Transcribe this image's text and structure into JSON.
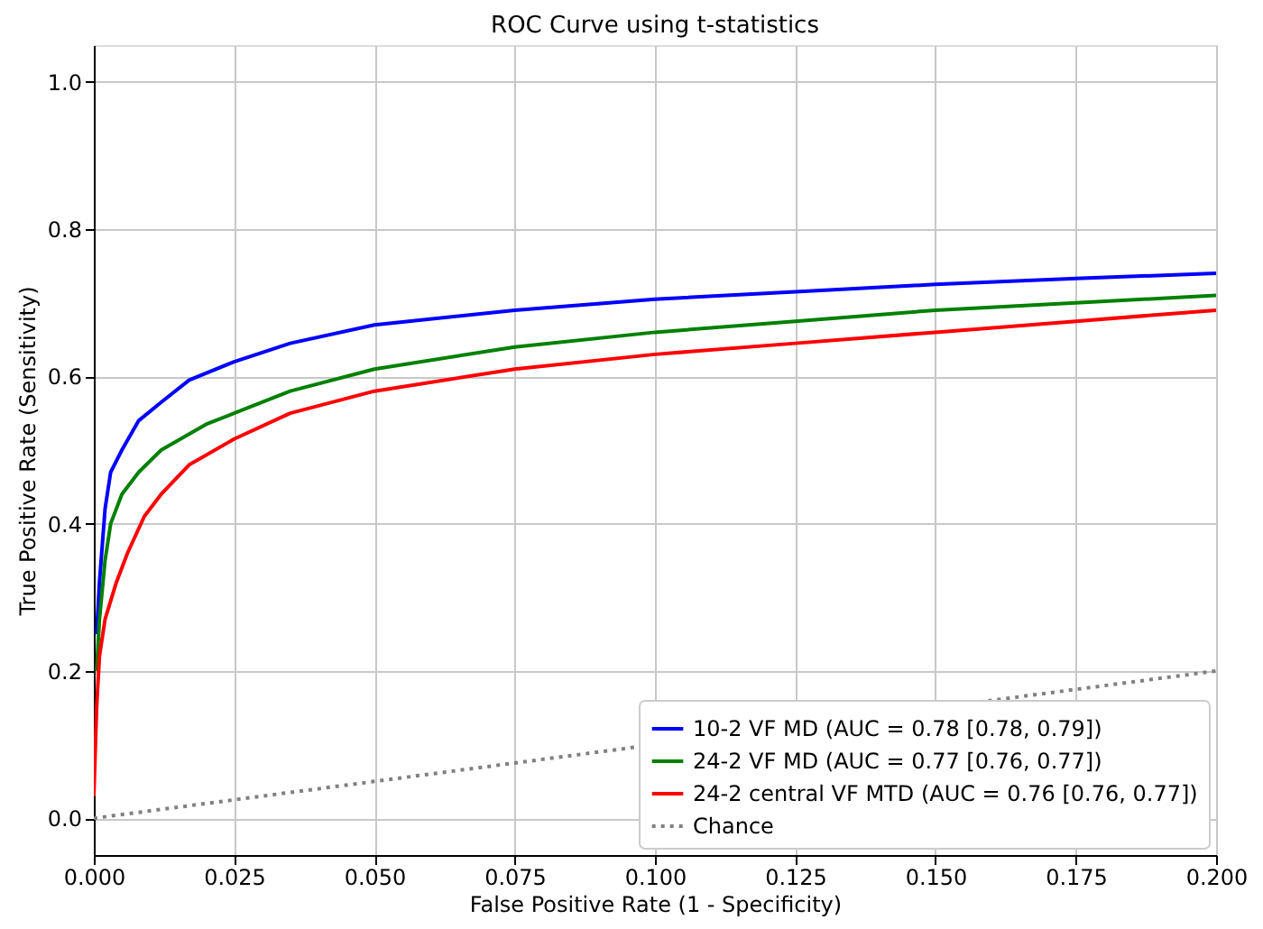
{
  "chart_data": {
    "type": "line",
    "title": "ROC Curve using t-statistics",
    "xlabel": "False Positive Rate (1 - Specificity)",
    "ylabel": "True Positive Rate (Sensitivity)",
    "xlim": [
      0,
      0.2
    ],
    "ylim": [
      -0.05,
      1.05
    ],
    "xticks": [
      {
        "value": 0,
        "label": "0.000"
      },
      {
        "value": 0.025,
        "label": "0.025"
      },
      {
        "value": 0.05,
        "label": "0.050"
      },
      {
        "value": 0.075,
        "label": "0.075"
      },
      {
        "value": 0.1,
        "label": "0.100"
      },
      {
        "value": 0.125,
        "label": "0.125"
      },
      {
        "value": 0.15,
        "label": "0.150"
      },
      {
        "value": 0.175,
        "label": "0.175"
      },
      {
        "value": 0.2,
        "label": "0.200"
      }
    ],
    "yticks": [
      {
        "value": 0,
        "label": "0.0"
      },
      0.2,
      0.4,
      0.6,
      0.8,
      {
        "value": 1,
        "label": "1.0"
      }
    ],
    "grid": true,
    "legend": "bottom right",
    "marker": "none",
    "series": [
      {
        "name": "10-2 VF MD (AUC = 0.78 [0.78, 0.79])",
        "color": "#0000ff",
        "line_style": "solid",
        "x": [
          0.0005,
          0.001,
          0.002,
          0.003,
          0.005,
          0.008,
          0.012,
          0.017,
          0.025,
          0.035,
          0.05,
          0.075,
          0.1,
          0.125,
          0.15,
          0.175,
          0.2
        ],
        "values": [
          0.25,
          0.32,
          0.42,
          0.47,
          0.5,
          0.54,
          0.565,
          0.595,
          0.62,
          0.645,
          0.67,
          0.69,
          0.705,
          0.715,
          0.725,
          0.733,
          0.74
        ]
      },
      {
        "name": "24-2 VF MD (AUC = 0.77 [0.76, 0.77])",
        "color": "#008000",
        "line_style": "solid",
        "x": [
          0.0005,
          0.001,
          0.002,
          0.003,
          0.005,
          0.008,
          0.012,
          0.02,
          0.025,
          0.035,
          0.05,
          0.075,
          0.1,
          0.125,
          0.15,
          0.175,
          0.2
        ],
        "values": [
          0.2,
          0.27,
          0.35,
          0.4,
          0.44,
          0.47,
          0.5,
          0.535,
          0.55,
          0.58,
          0.61,
          0.64,
          0.66,
          0.675,
          0.69,
          0.7,
          0.71
        ]
      },
      {
        "name": "24-2 central VF MTD (AUC = 0.76 [0.76, 0.77])",
        "color": "#ff0000",
        "line_style": "solid",
        "x": [
          0,
          0.0005,
          0.001,
          0.002,
          0.004,
          0.006,
          0.009,
          0.012,
          0.017,
          0.025,
          0.035,
          0.05,
          0.075,
          0.1,
          0.125,
          0.15,
          0.175,
          0.2
        ],
        "values": [
          0.03,
          0.15,
          0.22,
          0.27,
          0.32,
          0.36,
          0.41,
          0.44,
          0.48,
          0.515,
          0.55,
          0.58,
          0.61,
          0.63,
          0.645,
          0.66,
          0.675,
          0.69
        ]
      },
      {
        "name": "Chance",
        "color": "#808080",
        "line_style": "dotted",
        "x": [
          0,
          0.2
        ],
        "values": [
          0,
          0.2
        ]
      }
    ]
  }
}
